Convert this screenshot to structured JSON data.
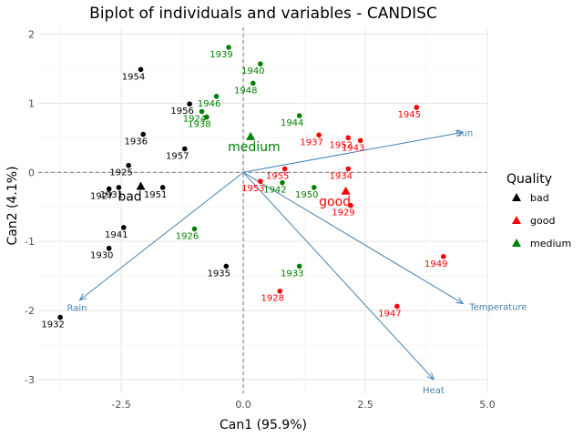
{
  "chart_data": {
    "type": "scatter",
    "title": "Biplot of individuals and variables - CANDISC",
    "xlabel": "Can1 (95.9%)",
    "ylabel": "Can2 (4.1%)",
    "xlim": [
      -4.2,
      5.0
    ],
    "ylim": [
      -3.2,
      2.1
    ],
    "xticks": [
      -2.5,
      0.0,
      2.5,
      5.0
    ],
    "xtick_labels": [
      "-2.5",
      "0.0",
      "2.5",
      "5.0"
    ],
    "yticks": [
      -3,
      -2,
      -1,
      0,
      1,
      2
    ],
    "ytick_labels": [
      "-3",
      "-2",
      "-1",
      "0",
      "1",
      "2"
    ],
    "grid": true,
    "legend": {
      "title": "Quality",
      "position": "right",
      "entries": [
        {
          "name": "bad",
          "color": "#000000"
        },
        {
          "name": "good",
          "color": "#ff0000"
        },
        {
          "name": "medium",
          "color": "#008000"
        }
      ]
    },
    "colors": {
      "bad": "#000000",
      "good": "#ff0000",
      "medium": "#008000",
      "vector": "#4682b4"
    },
    "points": [
      {
        "label": "1954",
        "group": "bad",
        "x": -2.1,
        "y": 1.49
      },
      {
        "label": "1956",
        "group": "bad",
        "x": -1.1,
        "y": 0.99
      },
      {
        "label": "1936",
        "group": "bad",
        "x": -2.05,
        "y": 0.55
      },
      {
        "label": "1957",
        "group": "bad",
        "x": -1.2,
        "y": 0.34
      },
      {
        "label": "1925",
        "group": "bad",
        "x": -2.35,
        "y": 0.1
      },
      {
        "label": "1931",
        "group": "bad",
        "x": -2.55,
        "y": -0.22
      },
      {
        "label": "1927",
        "group": "bad",
        "x": -2.75,
        "y": -0.24
      },
      {
        "label": "1951",
        "group": "bad",
        "x": -1.65,
        "y": -0.22
      },
      {
        "label": "1941",
        "group": "bad",
        "x": -2.45,
        "y": -0.8
      },
      {
        "label": "1930",
        "group": "bad",
        "x": -2.75,
        "y": -1.1
      },
      {
        "label": "1935",
        "group": "bad",
        "x": -0.35,
        "y": -1.36
      },
      {
        "label": "1932",
        "group": "bad",
        "x": -3.75,
        "y": -2.1
      },
      {
        "label": "1939",
        "group": "medium",
        "x": -0.3,
        "y": 1.81
      },
      {
        "label": "1940",
        "group": "medium",
        "x": 0.35,
        "y": 1.57
      },
      {
        "label": "1948",
        "group": "medium",
        "x": 0.2,
        "y": 1.29
      },
      {
        "label": "1946",
        "group": "medium",
        "x": -0.55,
        "y": 1.1
      },
      {
        "label": "1924",
        "group": "medium",
        "x": -0.85,
        "y": 0.88
      },
      {
        "label": "1938",
        "group": "medium",
        "x": -0.75,
        "y": 0.8
      },
      {
        "label": "1944",
        "group": "medium",
        "x": 1.15,
        "y": 0.82
      },
      {
        "label": "1942",
        "group": "medium",
        "x": 0.8,
        "y": -0.15
      },
      {
        "label": "1950",
        "group": "medium",
        "x": 1.45,
        "y": -0.22
      },
      {
        "label": "1926",
        "group": "medium",
        "x": -1.0,
        "y": -0.82
      },
      {
        "label": "1933",
        "group": "medium",
        "x": 1.15,
        "y": -1.36
      },
      {
        "label": "1945",
        "group": "good",
        "x": 3.55,
        "y": 0.94
      },
      {
        "label": "1952",
        "group": "good",
        "x": 2.15,
        "y": 0.5
      },
      {
        "label": "1937",
        "group": "good",
        "x": 1.55,
        "y": 0.54
      },
      {
        "label": "1943",
        "group": "good",
        "x": 2.4,
        "y": 0.46
      },
      {
        "label": "1955",
        "group": "good",
        "x": 0.85,
        "y": 0.05
      },
      {
        "label": "1934",
        "group": "good",
        "x": 2.15,
        "y": 0.05
      },
      {
        "label": "1953",
        "group": "good",
        "x": 0.35,
        "y": -0.13
      },
      {
        "label": "1929",
        "group": "good",
        "x": 2.2,
        "y": -0.48
      },
      {
        "label": "1949",
        "group": "good",
        "x": 4.1,
        "y": -1.22
      },
      {
        "label": "1928",
        "group": "good",
        "x": 0.75,
        "y": -1.72
      },
      {
        "label": "1947",
        "group": "good",
        "x": 3.15,
        "y": -1.94
      }
    ],
    "centroids": [
      {
        "label": "bad",
        "group": "bad",
        "x": -2.1,
        "y": -0.2
      },
      {
        "label": "medium",
        "group": "medium",
        "x": 0.15,
        "y": 0.52
      },
      {
        "label": "good",
        "group": "good",
        "x": 2.1,
        "y": -0.27
      }
    ],
    "vectors": [
      {
        "label": "Sun",
        "x": 4.5,
        "y": 0.58
      },
      {
        "label": "Temperature",
        "x": 4.5,
        "y": -1.9
      },
      {
        "label": "Heat",
        "x": 3.9,
        "y": -3.0
      },
      {
        "label": "Rain",
        "x": -3.35,
        "y": -1.85
      }
    ]
  }
}
